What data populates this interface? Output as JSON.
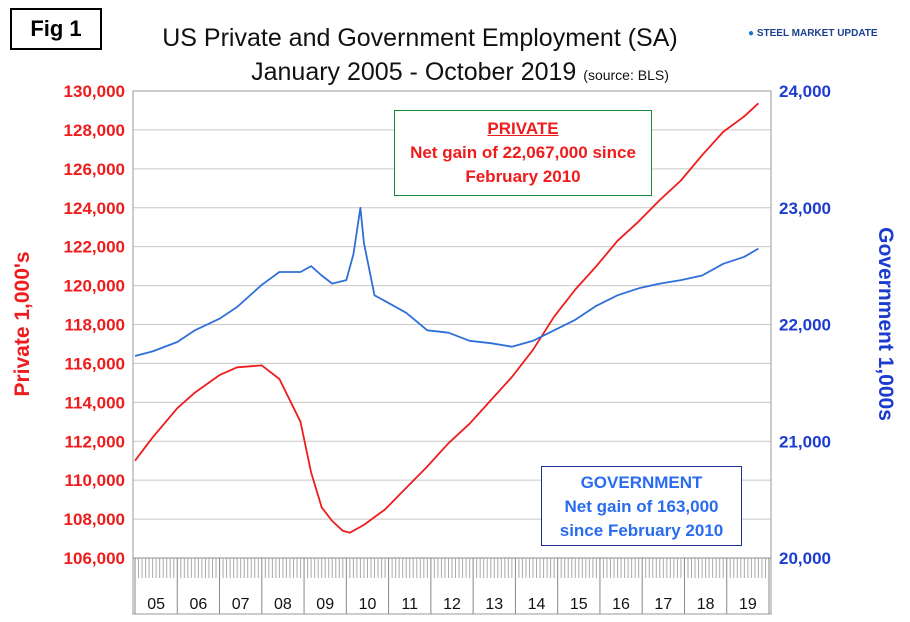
{
  "header": {
    "fig_label": "Fig 1",
    "title_line1": "US Private and Government Employment (SA)",
    "title_line2": "January 2005 - October 2019",
    "source": "(source: BLS)",
    "logo_text": "STEEL MARKET UPDATE"
  },
  "annotations": {
    "private": {
      "head": "PRIVATE",
      "line1": "Net gain of 22,067,000 since",
      "line2": "February 2010"
    },
    "government": {
      "head": "GOVERNMENT",
      "line1": "Net gain of 163,000",
      "line2": "since February 2010"
    }
  },
  "colors": {
    "private": "#ee1c1c",
    "government": "#2e6fd8",
    "grid": "#c8c8c8",
    "left_axis": "#ee1c1c",
    "right_axis": "#1c3cd0"
  },
  "chart_data": {
    "type": "line",
    "ylabel": "Private 1,000's",
    "y2label": "Government 1,000s",
    "ylim": [
      106000,
      130000
    ],
    "y2lim": [
      20000,
      24000
    ],
    "yticks": [
      "106,000",
      "108,000",
      "110,000",
      "112,000",
      "114,000",
      "116,000",
      "118,000",
      "120,000",
      "122,000",
      "124,000",
      "126,000",
      "128,000",
      "130,000"
    ],
    "y2ticks": [
      "20,000",
      "21,000",
      "22,000",
      "23,000",
      "24,000"
    ],
    "xcategories": [
      "05",
      "06",
      "07",
      "08",
      "09",
      "10",
      "11",
      "12",
      "13",
      "14",
      "15",
      "16",
      "17",
      "18",
      "19"
    ],
    "grid": "horizontal",
    "series": [
      {
        "axis": "left",
        "points": [
          [
            "2005-01",
            111000
          ],
          [
            "2005-06",
            112200
          ],
          [
            "2006-01",
            113700
          ],
          [
            "2006-06",
            114500
          ],
          [
            "2007-01",
            115400
          ],
          [
            "2007-06",
            115800
          ],
          [
            "2008-01",
            115900
          ],
          [
            "2008-06",
            115200
          ],
          [
            "2008-12",
            113000
          ],
          [
            "2009-03",
            110400
          ],
          [
            "2009-06",
            108600
          ],
          [
            "2009-09",
            107900
          ],
          [
            "2009-12",
            107400
          ],
          [
            "2010-02",
            107300
          ],
          [
            "2010-06",
            107700
          ],
          [
            "2010-12",
            108500
          ],
          [
            "2011-06",
            109600
          ],
          [
            "2011-12",
            110700
          ],
          [
            "2012-06",
            111900
          ],
          [
            "2012-12",
            112900
          ],
          [
            "2013-06",
            114100
          ],
          [
            "2013-12",
            115300
          ],
          [
            "2014-06",
            116700
          ],
          [
            "2014-12",
            118400
          ],
          [
            "2015-06",
            119800
          ],
          [
            "2015-12",
            121000
          ],
          [
            "2016-06",
            122300
          ],
          [
            "2016-12",
            123300
          ],
          [
            "2017-06",
            124400
          ],
          [
            "2017-12",
            125400
          ],
          [
            "2018-06",
            126700
          ],
          [
            "2018-12",
            127900
          ],
          [
            "2019-06",
            128700
          ],
          [
            "2019-10",
            129370
          ]
        ]
      },
      {
        "axis": "right",
        "points": [
          [
            "2005-01",
            21730
          ],
          [
            "2005-06",
            21770
          ],
          [
            "2006-01",
            21850
          ],
          [
            "2006-06",
            21950
          ],
          [
            "2007-01",
            22050
          ],
          [
            "2007-06",
            22150
          ],
          [
            "2008-01",
            22340
          ],
          [
            "2008-06",
            22450
          ],
          [
            "2008-12",
            22450
          ],
          [
            "2009-03",
            22500
          ],
          [
            "2009-06",
            22420
          ],
          [
            "2009-09",
            22350
          ],
          [
            "2010-01",
            22380
          ],
          [
            "2010-03",
            22600
          ],
          [
            "2010-05",
            23000
          ],
          [
            "2010-06",
            22700
          ],
          [
            "2010-09",
            22250
          ],
          [
            "2010-12",
            22200
          ],
          [
            "2011-06",
            22100
          ],
          [
            "2011-12",
            21950
          ],
          [
            "2012-06",
            21930
          ],
          [
            "2012-12",
            21860
          ],
          [
            "2013-06",
            21840
          ],
          [
            "2013-12",
            21810
          ],
          [
            "2014-06",
            21860
          ],
          [
            "2014-12",
            21950
          ],
          [
            "2015-06",
            22040
          ],
          [
            "2015-12",
            22160
          ],
          [
            "2016-06",
            22250
          ],
          [
            "2016-12",
            22310
          ],
          [
            "2017-06",
            22350
          ],
          [
            "2017-12",
            22380
          ],
          [
            "2018-06",
            22420
          ],
          [
            "2018-12",
            22520
          ],
          [
            "2019-06",
            22580
          ],
          [
            "2019-10",
            22650
          ]
        ]
      }
    ]
  }
}
